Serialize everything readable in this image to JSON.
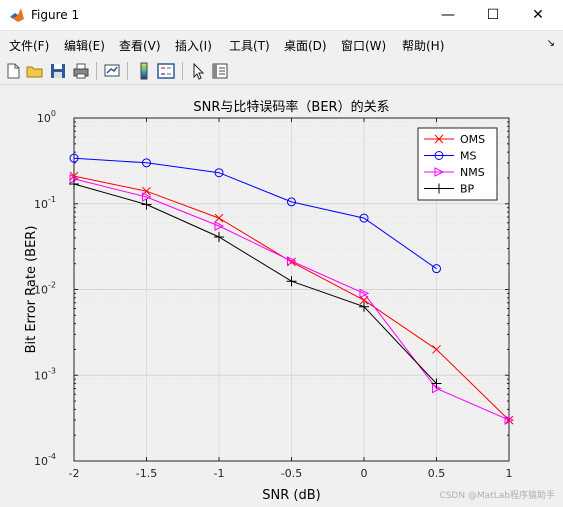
{
  "window": {
    "title": "Figure 1"
  },
  "window_controls": {
    "minimize": "—",
    "maximize": "☐",
    "close": "✕"
  },
  "menubar": {
    "items": [
      "文件(F)",
      "编辑(E)",
      "查看(V)",
      "插入(I)",
      "工具(T)",
      "桌面(D)",
      "窗口(W)",
      "帮助(H)"
    ],
    "overflow_arrow": "↘"
  },
  "toolbar": {
    "icons": [
      "new-figure-icon",
      "open-file-icon",
      "save-icon",
      "print-icon",
      "link-plot-icon",
      "colorbar-icon",
      "legend-icon",
      "pointer-icon",
      "property-inspector-icon"
    ]
  },
  "chart_data": {
    "type": "line",
    "title": "SNR与比特误码率（BER）的关系",
    "xlabel": "SNR (dB)",
    "ylabel": "Bit Error Rate (BER)",
    "xlim": [
      -2,
      1
    ],
    "ylim": [
      0.0001,
      1
    ],
    "yscale": "log",
    "grid": true,
    "legend_position": "top-right",
    "x_ticks": [
      "-2",
      "-1.5",
      "-1",
      "-0.5",
      "0",
      "0.5",
      "1"
    ],
    "y_ticks": [
      {
        "base": "10",
        "exp": "0"
      },
      {
        "base": "10",
        "exp": "-1"
      },
      {
        "base": "10",
        "exp": "-2"
      },
      {
        "base": "10",
        "exp": "-3"
      },
      {
        "base": "10",
        "exp": "-4"
      }
    ],
    "series": [
      {
        "name": "OMS",
        "color": "#ff0000",
        "marker": "x",
        "x": [
          -2,
          -1.5,
          -1,
          -0.5,
          0,
          0.5,
          1
        ],
        "y": [
          0.21,
          0.14,
          0.068,
          0.021,
          0.0075,
          0.002,
          0.0003
        ]
      },
      {
        "name": "MS",
        "color": "#0000ff",
        "marker": "o",
        "x": [
          -2,
          -1.5,
          -1,
          -0.5,
          0,
          0.5
        ],
        "y": [
          0.34,
          0.3,
          0.23,
          0.105,
          0.068,
          0.0175
        ]
      },
      {
        "name": "NMS",
        "color": "#ff00ff",
        "marker": "triangle-right",
        "x": [
          -2,
          -1.5,
          -1,
          -0.5,
          0,
          0.5,
          1
        ],
        "y": [
          0.195,
          0.12,
          0.055,
          0.0215,
          0.009,
          0.0007,
          0.0003
        ]
      },
      {
        "name": "BP",
        "color": "#000000",
        "marker": "+",
        "x": [
          -2,
          -1.5,
          -1,
          -0.5,
          0,
          0.5
        ],
        "y": [
          0.17,
          0.098,
          0.041,
          0.0125,
          0.0063,
          0.0008
        ]
      }
    ]
  },
  "watermark": "CSDN @MatLab程序猿助手"
}
